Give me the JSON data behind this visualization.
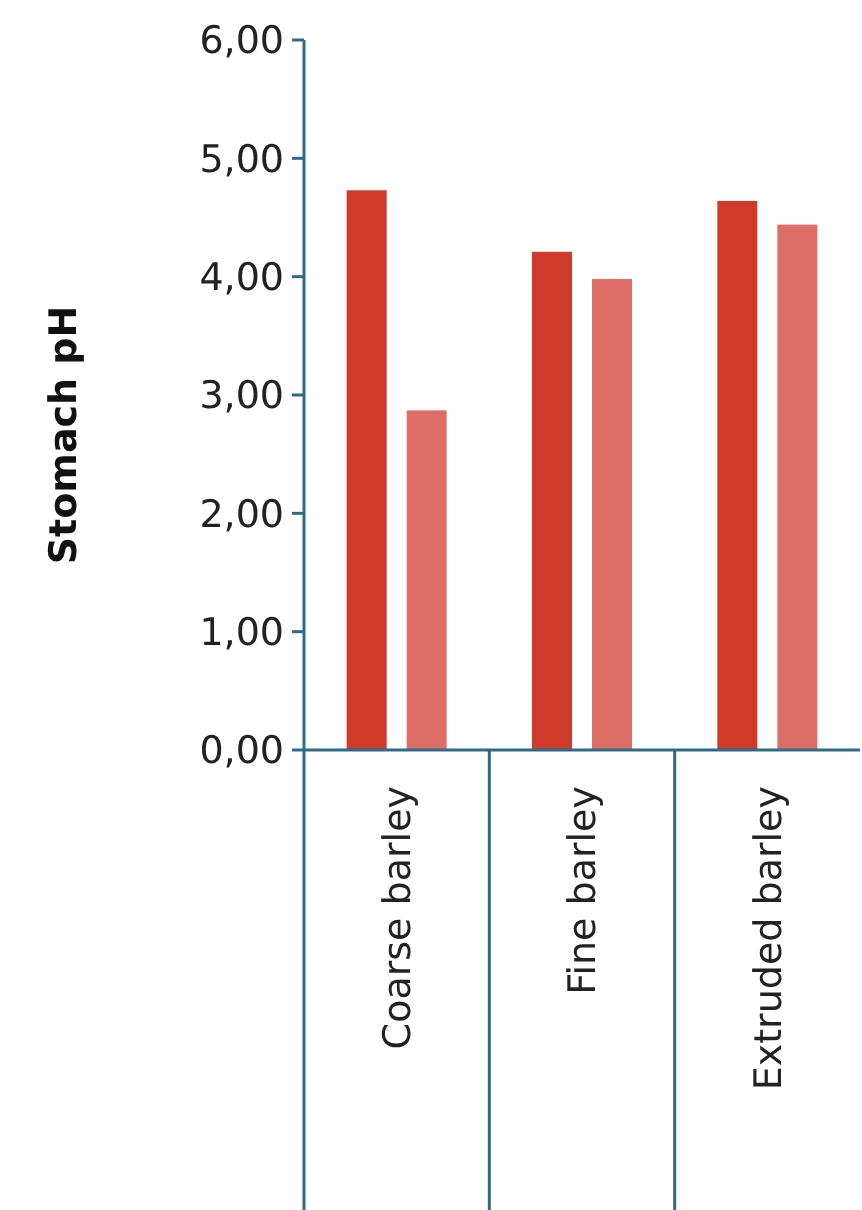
{
  "chart_data": {
    "type": "bar",
    "ylabel": "Stomach pH",
    "categories": [
      "Coarse barley",
      "Fine barley",
      "Extruded barley"
    ],
    "series": [
      {
        "color": "#cf3a2a",
        "values": [
          4.73,
          4.21,
          4.64
        ]
      },
      {
        "color": "#de6d66",
        "values": [
          2.87,
          3.98,
          4.44
        ]
      }
    ],
    "ylim": [
      0,
      6
    ],
    "yticks": [
      {
        "value": 0,
        "label": "0,00"
      },
      {
        "value": 1,
        "label": "1,00"
      },
      {
        "value": 2,
        "label": "2,00"
      },
      {
        "value": 3,
        "label": "3,00"
      },
      {
        "value": 4,
        "label": "4,00"
      },
      {
        "value": 5,
        "label": "5,00"
      },
      {
        "value": 6,
        "label": "6,00"
      }
    ],
    "grid": false
  }
}
